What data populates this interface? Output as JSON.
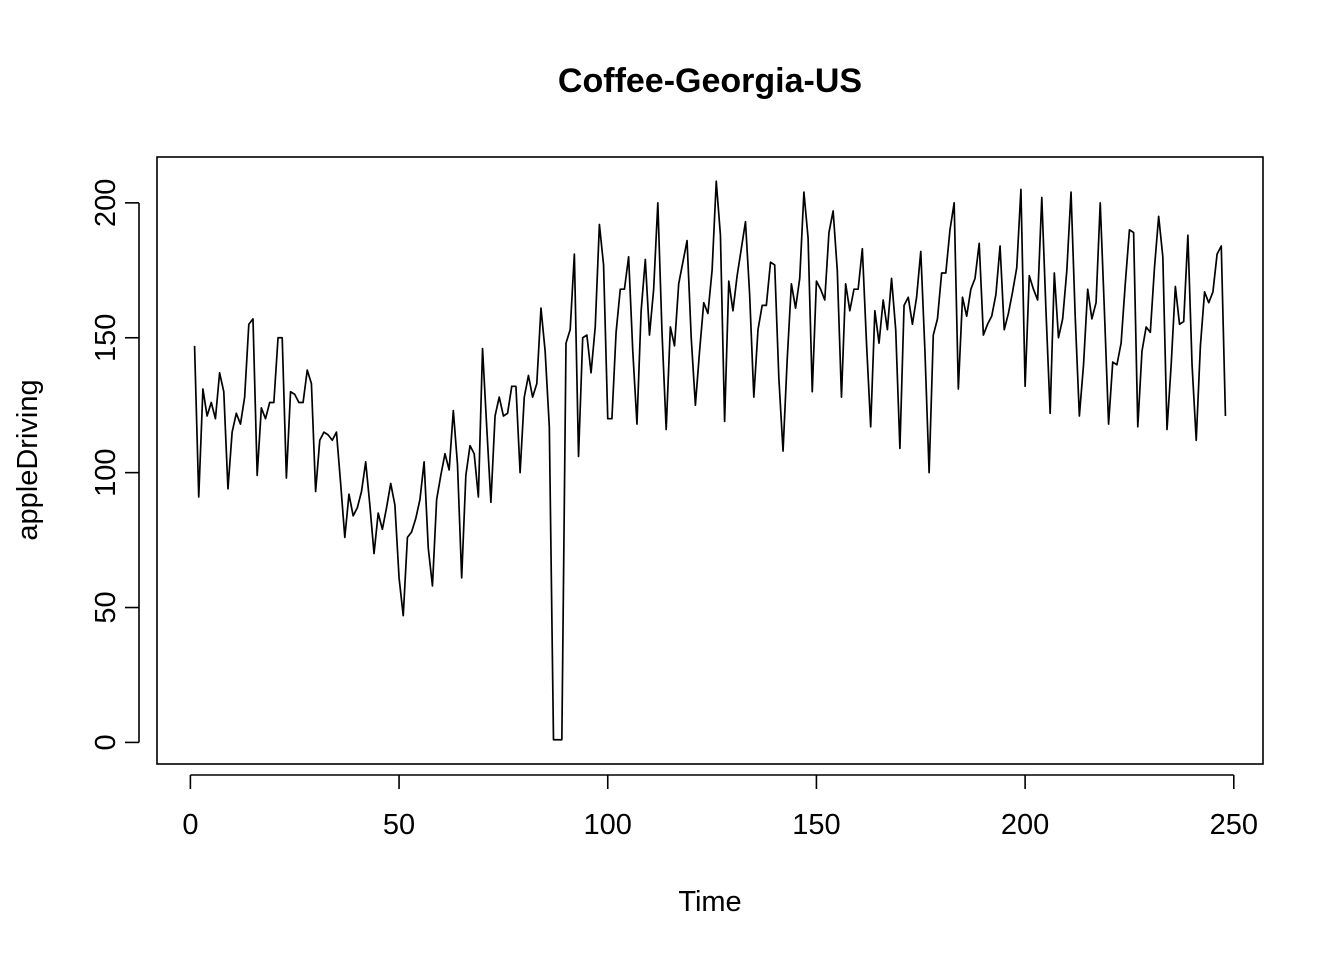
{
  "chart_data": {
    "type": "line",
    "title": "Coffee-Georgia-US",
    "xlabel": "Time",
    "ylabel": "appleDriving",
    "xlim": [
      -8,
      257
    ],
    "ylim": [
      -8,
      217
    ],
    "x_ticks": [
      0,
      50,
      100,
      150,
      200,
      250
    ],
    "y_ticks": [
      0,
      50,
      100,
      150,
      200
    ],
    "grid": false,
    "legend": "none",
    "series": [
      {
        "x_start": 1,
        "values": [
          147,
          91,
          131,
          121,
          126,
          120,
          137,
          130,
          94,
          115,
          122,
          118,
          128,
          155,
          157,
          99,
          124,
          120,
          126,
          126,
          150,
          150,
          98,
          130,
          129,
          126,
          126,
          138,
          133,
          93,
          112,
          115,
          114,
          112,
          115,
          96,
          76,
          92,
          84,
          87,
          93,
          104,
          88,
          70,
          85,
          79,
          87,
          96,
          88,
          61,
          47,
          76,
          78,
          83,
          90,
          104,
          72,
          58,
          90,
          99,
          107,
          101,
          123,
          103,
          61,
          99,
          110,
          107,
          91,
          146,
          117,
          89,
          121,
          128,
          121,
          122,
          132,
          132,
          100,
          128,
          136,
          128,
          133,
          161,
          145,
          117,
          1,
          1,
          1,
          148,
          153,
          181,
          106,
          150,
          151,
          137,
          154,
          192,
          177,
          120,
          120,
          152,
          168,
          168,
          180,
          145,
          118,
          160,
          179,
          151,
          168,
          200,
          152,
          116,
          154,
          147,
          170,
          178,
          186,
          150,
          125,
          145,
          163,
          159,
          175,
          208,
          188,
          119,
          171,
          160,
          173,
          183,
          193,
          166,
          128,
          153,
          162,
          162,
          178,
          177,
          135,
          108,
          142,
          170,
          161,
          172,
          204,
          187,
          130,
          171,
          168,
          164,
          189,
          197,
          175,
          128,
          170,
          160,
          168,
          168,
          183,
          148,
          117,
          160,
          148,
          164,
          153,
          172,
          153,
          109,
          162,
          165,
          155,
          165,
          182,
          145,
          100,
          151,
          157,
          174,
          174,
          190,
          200,
          131,
          165,
          158,
          168,
          172,
          185,
          151,
          155,
          158,
          166,
          184,
          153,
          159,
          167,
          176,
          205,
          132,
          173,
          168,
          164,
          202,
          160,
          122,
          174,
          150,
          157,
          175,
          204,
          158,
          121,
          140,
          168,
          157,
          163,
          200,
          160,
          118,
          141,
          140,
          148,
          170,
          190,
          189,
          117,
          145,
          154,
          152,
          176,
          195,
          180,
          116,
          140,
          169,
          155,
          156,
          188,
          140,
          112,
          147,
          167,
          163,
          167,
          181,
          184,
          121
        ]
      }
    ]
  }
}
